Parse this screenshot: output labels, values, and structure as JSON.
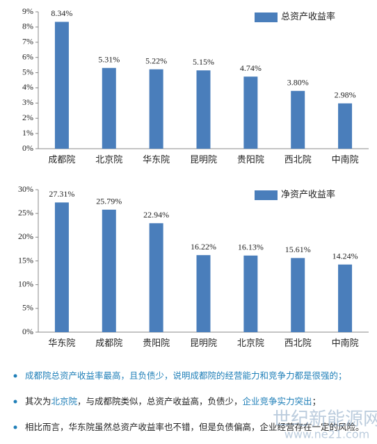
{
  "chart_data": [
    {
      "type": "bar",
      "categories": [
        "成都院",
        "北京院",
        "华东院",
        "昆明院",
        "贵阳院",
        "西北院",
        "中南院"
      ],
      "series": [
        {
          "name": "总资产收益率",
          "color": "#4a7ebb",
          "values": [
            8.34,
            5.31,
            5.22,
            5.15,
            4.74,
            3.8,
            2.98
          ],
          "value_labels": [
            "8.34%",
            "5.31%",
            "5.22%",
            "5.15%",
            "4.74%",
            "3.80%",
            "2.98%"
          ]
        }
      ],
      "ylim": [
        0,
        9
      ],
      "yticks": [
        {
          "value": 0,
          "label": "0%"
        },
        {
          "value": 1,
          "label": "1%"
        },
        {
          "value": 2,
          "label": "2%"
        },
        {
          "value": 3,
          "label": "3%"
        },
        {
          "value": 4,
          "label": "4%"
        },
        {
          "value": 5,
          "label": "5%"
        },
        {
          "value": 6,
          "label": "6%"
        },
        {
          "value": 7,
          "label": "7%"
        },
        {
          "value": 8,
          "label": "8%"
        },
        {
          "value": 9,
          "label": "9%"
        }
      ],
      "grid": false
    },
    {
      "type": "bar",
      "categories": [
        "华东院",
        "成都院",
        "贵阳院",
        "昆明院",
        "北京院",
        "西北院",
        "中南院"
      ],
      "series": [
        {
          "name": "净资产收益率",
          "color": "#4a7ebb",
          "values": [
            27.31,
            25.79,
            22.94,
            16.22,
            16.13,
            15.61,
            14.24
          ],
          "value_labels": [
            "27.31%",
            "25.79%",
            "22.94%",
            "16.22%",
            "16.13%",
            "15.61%",
            "14.24%"
          ]
        }
      ],
      "ylim": [
        0,
        30
      ],
      "yticks": [
        {
          "value": 0,
          "label": "0%"
        },
        {
          "value": 5,
          "label": "5%"
        },
        {
          "value": 10,
          "label": "10%"
        },
        {
          "value": 15,
          "label": "15%"
        },
        {
          "value": 20,
          "label": "20%"
        },
        {
          "value": 25,
          "label": "25%"
        },
        {
          "value": 30,
          "label": "30%"
        }
      ],
      "grid": false
    }
  ],
  "bullets": [
    [
      {
        "text": "成都院总资产收益率最高，且负债少，说明成都院的经营能力和竞争力都是很强的；",
        "color": "#1f7fb8"
      }
    ],
    [
      {
        "text": "其次为",
        "color": "#222222"
      },
      {
        "text": "北京院",
        "color": "#1f7fb8"
      },
      {
        "text": "，与成都院类似，总资产收益高，负债少，",
        "color": "#222222"
      },
      {
        "text": "企业竞争实力突出",
        "color": "#1f7fb8"
      },
      {
        "text": "；",
        "color": "#222222"
      }
    ],
    [
      {
        "text": "相比而言，华东院虽然总资产收益率也不错，但是负债偏高，企业经营存在一定的风险。",
        "color": "#222222"
      }
    ]
  ],
  "watermark": [
    "世纪新能源网",
    "www.ne21.com"
  ]
}
